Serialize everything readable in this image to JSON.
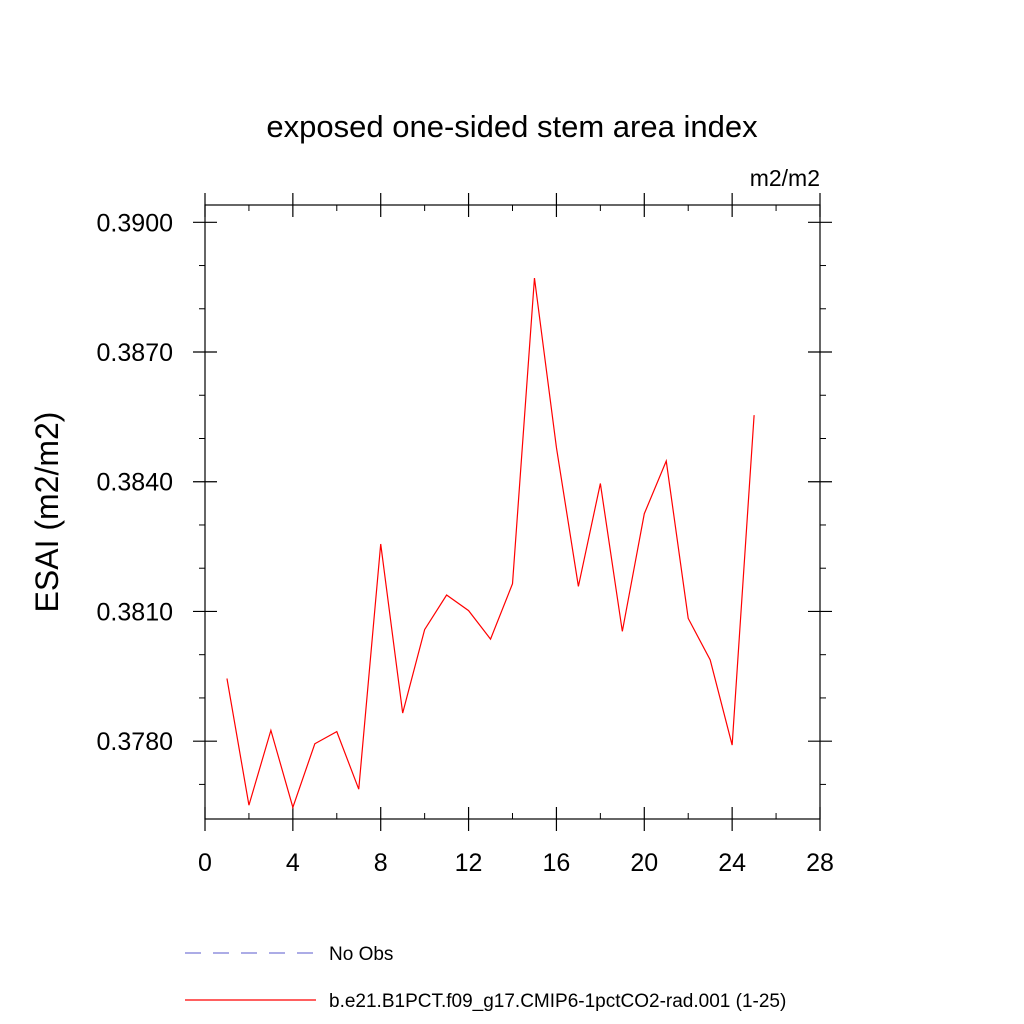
{
  "chart_data": {
    "type": "line",
    "title": "exposed one-sided stem area index",
    "units_label": "m2/m2",
    "ylabel": "ESAI  (m2/m2)",
    "xlabel": "",
    "xlim": [
      0,
      28
    ],
    "ylim": [
      0.3762,
      0.3904
    ],
    "x_ticks": [
      0,
      4,
      8,
      12,
      16,
      20,
      24,
      28
    ],
    "x_tick_labels": [
      "0",
      "4",
      "8",
      "12",
      "16",
      "20",
      "24",
      "28"
    ],
    "y_ticks": [
      0.378,
      0.381,
      0.384,
      0.387,
      0.39
    ],
    "y_tick_labels": [
      "0.3780",
      "0.3810",
      "0.3840",
      "0.3870",
      "0.3900"
    ],
    "x_minor_step": 2,
    "y_minor_step": 0.001,
    "grid": false,
    "legend_position": "bottom",
    "series": [
      {
        "name": "No Obs",
        "color": "#7b7bd6",
        "dash": "dashed",
        "x": [],
        "y": []
      },
      {
        "name": "b.e21.B1PCT.f09_g17.CMIP6-1pctCO2-rad.001 (1-25)",
        "color": "#ff0000",
        "dash": "solid",
        "x": [
          1,
          2,
          3,
          4,
          5,
          6,
          7,
          8,
          9,
          10,
          11,
          12,
          13,
          14,
          15,
          16,
          17,
          18,
          19,
          20,
          21,
          22,
          23,
          24,
          25
        ],
        "y": [
          0.37945,
          0.37652,
          0.37825,
          0.37647,
          0.37794,
          0.37822,
          0.37689,
          0.38256,
          0.37865,
          0.38058,
          0.38138,
          0.38102,
          0.38036,
          0.38164,
          0.38871,
          0.38479,
          0.38158,
          0.38396,
          0.38054,
          0.38326,
          0.38448,
          0.38084,
          0.37988,
          0.37791,
          0.38554
        ]
      }
    ]
  }
}
